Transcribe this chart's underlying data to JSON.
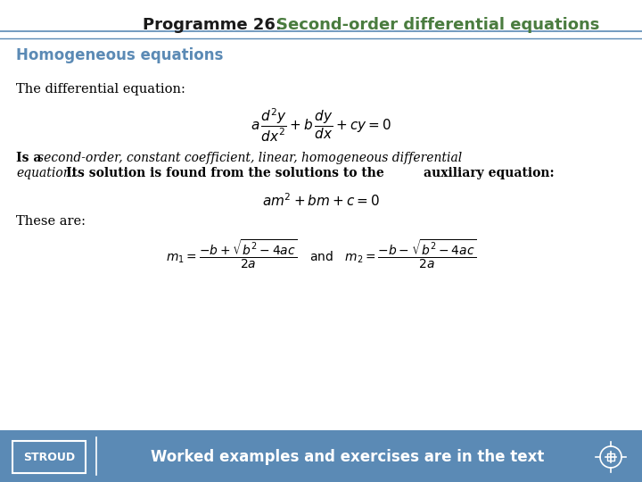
{
  "title_left": "Programme 26:  ",
  "title_right": "Second-order differential equations",
  "title_left_color": "#1a1a1a",
  "title_right_color": "#4a7c3f",
  "title_fontsize": 13,
  "section_heading": "Homogeneous equations",
  "section_heading_color": "#5b8ab5",
  "section_heading_fontsize": 12,
  "text1": "The differential equation:",
  "eq1": "$a\\,\\dfrac{d^2y}{dx^2} + b\\,\\dfrac{dy}{dx} + cy = 0$",
  "eq1_fontsize": 11,
  "text2_normal": "Is a ",
  "text2_italic": "second-order, constant coefficient, linear, homogeneous differential",
  "text2_italic2": "equation.",
  "text2_body": " Its solution is found from the solutions to the ",
  "text2_bold": "auxiliary equation:",
  "eq2": "$am^2 + bm + c = 0$",
  "eq2_fontsize": 11,
  "text3": "These are:",
  "eq3": "$m_1 = \\dfrac{-b + \\sqrt{b^2 - 4ac}}{2a}\\quad \\mathrm{and} \\quad m_2 = \\dfrac{-b - \\sqrt{b^2 - 4ac}}{2a}$",
  "eq3_fontsize": 10,
  "footer_bg_color": "#5b8ab5",
  "footer_text_color": "#ffffff",
  "footer_text": "Worked examples and exercises are in the text",
  "stroud_label": "STROUD",
  "background_color": "#ffffff",
  "line_color": "#5b8ab5"
}
